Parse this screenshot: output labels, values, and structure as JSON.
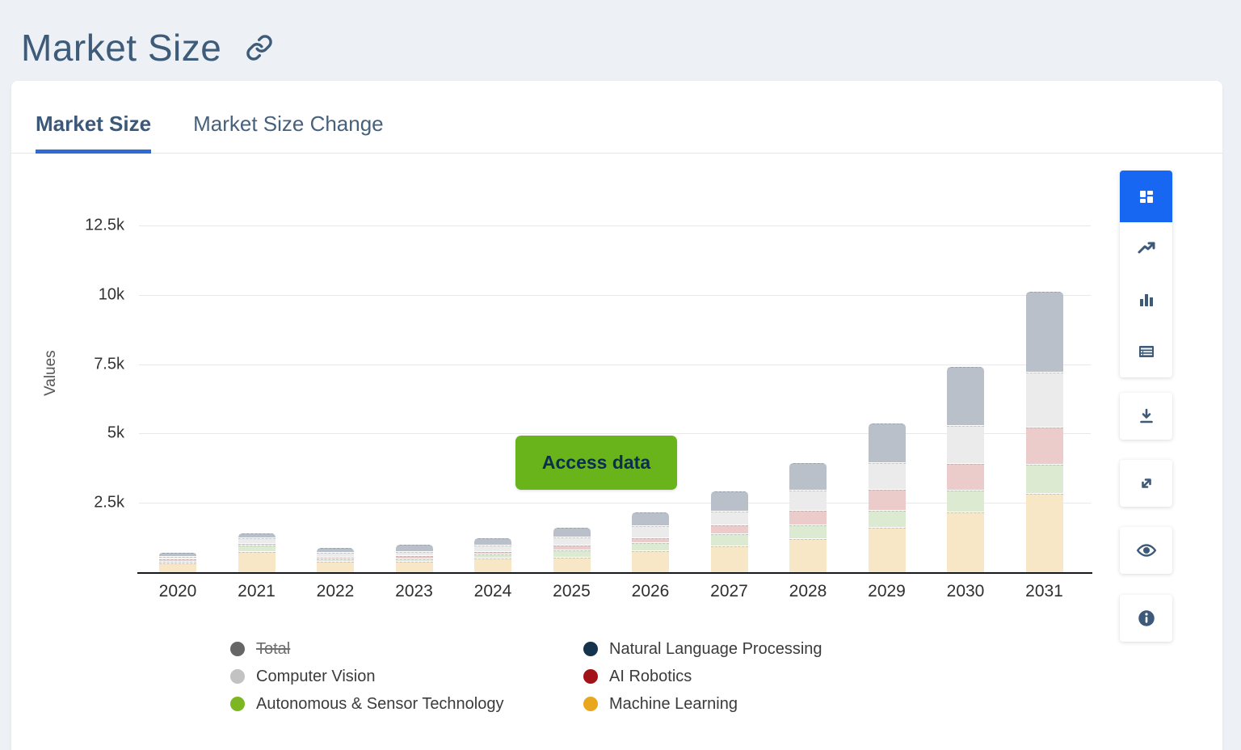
{
  "page": {
    "title": "Market Size"
  },
  "tabs": [
    {
      "label": "Market Size",
      "active": true
    },
    {
      "label": "Market Size Change",
      "active": false
    }
  ],
  "access_button": {
    "label": "Access data",
    "background": "#69b41b",
    "text_color": "#0c2d52"
  },
  "toolbar": {
    "chart_type_buttons": [
      {
        "name": "dashboard-view",
        "active": true
      },
      {
        "name": "line-chart-view",
        "active": false
      },
      {
        "name": "bar-chart-view",
        "active": false
      },
      {
        "name": "table-view",
        "active": false
      }
    ],
    "action_buttons": [
      {
        "name": "download"
      },
      {
        "name": "expand"
      },
      {
        "name": "toggle-visibility"
      },
      {
        "name": "info"
      }
    ],
    "active_color": "#1767f2",
    "icon_color": "#3d5a78"
  },
  "legend": {
    "columns": [
      [
        {
          "label": "Total",
          "dot_color": "#666666",
          "struck": true
        },
        {
          "label": "Computer Vision",
          "dot_color": "#c2c2c2",
          "struck": false
        },
        {
          "label": "Autonomous & Sensor Technology",
          "dot_color": "#7cb723",
          "struck": false
        }
      ],
      [
        {
          "label": "Natural Language Processing",
          "dot_color": "#16334d",
          "struck": false
        },
        {
          "label": "AI Robotics",
          "dot_color": "#a31217",
          "struck": false
        },
        {
          "label": "Machine Learning",
          "dot_color": "#e8a71e",
          "struck": false
        }
      ]
    ]
  },
  "chart_data": {
    "type": "bar",
    "stacked": true,
    "title": "Market Size",
    "xlabel": "",
    "ylabel": "Values",
    "ylim": [
      0,
      13000
    ],
    "grid": true,
    "legend_position": "bottom",
    "yticks": [
      {
        "label": "2.5k",
        "value": 2500
      },
      {
        "label": "5k",
        "value": 5000
      },
      {
        "label": "7.5k",
        "value": 7500
      },
      {
        "label": "10k",
        "value": 10000
      },
      {
        "label": "12.5k",
        "value": 12500
      }
    ],
    "categories": [
      "2020",
      "2021",
      "2022",
      "2023",
      "2024",
      "2025",
      "2026",
      "2027",
      "2028",
      "2029",
      "2030",
      "2031"
    ],
    "series": [
      {
        "name": "Machine Learning",
        "legend_color": "#e8a71e",
        "bar_color": "#f8e7c6",
        "values": [
          310,
          720,
          380,
          380,
          480,
          520,
          750,
          940,
          1200,
          1600,
          2160,
          2830
        ]
      },
      {
        "name": "Autonomous & Sensor Technology",
        "legend_color": "#7cb723",
        "bar_color": "#dcead2",
        "values": [
          50,
          220,
          60,
          70,
          130,
          240,
          260,
          390,
          470,
          580,
          760,
          1020
        ]
      },
      {
        "name": "AI Robotics",
        "legend_color": "#a31217",
        "bar_color": "#ecccca",
        "values": [
          40,
          30,
          40,
          60,
          50,
          150,
          160,
          290,
          500,
          730,
          920,
          1300
        ]
      },
      {
        "name": "Computer Vision",
        "legend_color": "#c2c2c2",
        "bar_color": "#ebebeb",
        "values": [
          80,
          170,
          140,
          130,
          210,
          260,
          390,
          490,
          680,
          930,
          1360,
          1970
        ]
      },
      {
        "name": "Natural Language Processing",
        "legend_color": "#16334d",
        "bar_color": "#b9c0ca",
        "values": [
          110,
          150,
          150,
          230,
          250,
          320,
          480,
          680,
          970,
          1400,
          2080,
          2860
        ]
      }
    ],
    "hidden_series": [
      {
        "name": "Total",
        "visible": false,
        "struck_in_legend": true
      }
    ],
    "totals": [
      590,
      1290,
      770,
      870,
      1120,
      1490,
      2040,
      2790,
      3820,
      5240,
      7280,
      9980
    ]
  }
}
